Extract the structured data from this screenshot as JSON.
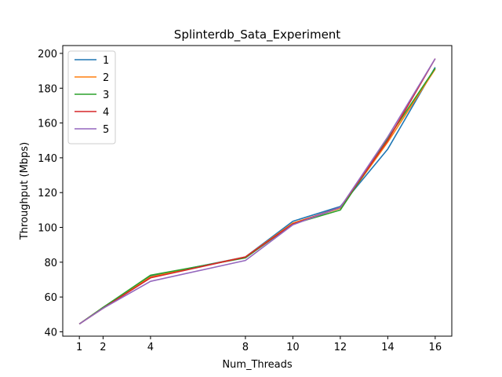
{
  "chart_data": {
    "type": "line",
    "title": "Splinterdb_Sata_Experiment",
    "xlabel": "Num_Threads",
    "ylabel": "Throughput (Mbps)",
    "x": [
      1,
      2,
      4,
      8,
      10,
      12,
      14,
      16
    ],
    "xticks": [
      1,
      2,
      4,
      8,
      10,
      12,
      14,
      16
    ],
    "yticks": [
      40,
      60,
      80,
      100,
      120,
      140,
      160,
      180,
      200
    ],
    "xlim": [
      0.3,
      16.7
    ],
    "ylim": [
      37.5,
      204.5
    ],
    "grid": false,
    "legend_position": "upper-left",
    "series": [
      {
        "name": "1",
        "color": "#1f77b4",
        "values": [
          44.5,
          54,
          72,
          83,
          103.5,
          112,
          145,
          192
        ]
      },
      {
        "name": "2",
        "color": "#ff7f0e",
        "values": [
          44.5,
          54,
          71.5,
          83,
          102.5,
          111,
          149,
          191
        ]
      },
      {
        "name": "3",
        "color": "#2ca02c",
        "values": [
          44.5,
          54,
          72.5,
          82.5,
          102,
          110,
          151,
          191.5
        ]
      },
      {
        "name": "4",
        "color": "#d62728",
        "values": [
          44.5,
          53.5,
          71,
          83,
          102,
          111.5,
          150,
          197
        ]
      },
      {
        "name": "5",
        "color": "#9467bd",
        "values": [
          44.5,
          53.5,
          69,
          81,
          101.5,
          111.5,
          152,
          197
        ]
      }
    ]
  }
}
